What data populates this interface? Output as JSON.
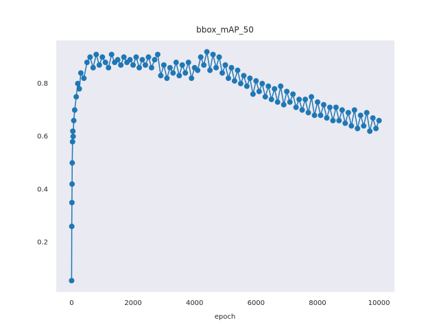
{
  "chart_data": {
    "type": "line",
    "title": "bbox_mAP_50",
    "xlabel": "epoch",
    "grid": false,
    "background": "#eaeaf2",
    "xlim": [
      -500,
      10500
    ],
    "xticks": [
      0,
      2000,
      4000,
      6000,
      8000,
      10000
    ],
    "ylim": [
      0.012,
      0.963
    ],
    "yticks": [
      0.2,
      0.4,
      0.6,
      0.8
    ],
    "x": [
      0,
      5,
      10,
      15,
      20,
      30,
      40,
      50,
      70,
      100,
      150,
      200,
      250,
      300,
      400,
      500,
      600,
      700,
      800,
      900,
      1000,
      1100,
      1200,
      1300,
      1400,
      1500,
      1600,
      1700,
      1800,
      1900,
      2000,
      2100,
      2200,
      2300,
      2400,
      2500,
      2600,
      2700,
      2800,
      2900,
      3000,
      3100,
      3200,
      3300,
      3400,
      3500,
      3600,
      3700,
      3800,
      3900,
      4000,
      4100,
      4200,
      4300,
      4400,
      4500,
      4600,
      4700,
      4800,
      4900,
      5000,
      5100,
      5200,
      5300,
      5400,
      5500,
      5600,
      5700,
      5800,
      5900,
      6000,
      6100,
      6200,
      6300,
      6400,
      6500,
      6600,
      6700,
      6800,
      6900,
      7000,
      7100,
      7200,
      7300,
      7400,
      7500,
      7600,
      7700,
      7800,
      7900,
      8000,
      8100,
      8200,
      8300,
      8400,
      8500,
      8600,
      8700,
      8800,
      8900,
      9000,
      9100,
      9200,
      9300,
      9400,
      9500,
      9600,
      9700,
      9800,
      9900,
      10000
    ],
    "series": [
      {
        "color": "#1f77b4",
        "values": [
          0.055,
          0.26,
          0.35,
          0.42,
          0.5,
          0.58,
          0.62,
          0.6,
          0.66,
          0.7,
          0.75,
          0.8,
          0.78,
          0.84,
          0.82,
          0.88,
          0.9,
          0.86,
          0.91,
          0.87,
          0.9,
          0.88,
          0.86,
          0.91,
          0.88,
          0.89,
          0.87,
          0.9,
          0.88,
          0.89,
          0.87,
          0.9,
          0.86,
          0.89,
          0.87,
          0.9,
          0.86,
          0.89,
          0.91,
          0.83,
          0.87,
          0.82,
          0.86,
          0.84,
          0.88,
          0.83,
          0.87,
          0.84,
          0.88,
          0.82,
          0.86,
          0.85,
          0.9,
          0.87,
          0.92,
          0.85,
          0.91,
          0.86,
          0.9,
          0.84,
          0.87,
          0.82,
          0.86,
          0.81,
          0.85,
          0.8,
          0.83,
          0.79,
          0.82,
          0.76,
          0.81,
          0.77,
          0.8,
          0.75,
          0.79,
          0.74,
          0.78,
          0.73,
          0.79,
          0.72,
          0.77,
          0.73,
          0.76,
          0.71,
          0.74,
          0.7,
          0.74,
          0.69,
          0.75,
          0.68,
          0.73,
          0.68,
          0.72,
          0.67,
          0.71,
          0.66,
          0.71,
          0.66,
          0.7,
          0.65,
          0.69,
          0.64,
          0.7,
          0.63,
          0.68,
          0.64,
          0.69,
          0.62,
          0.67,
          0.63,
          0.66
        ]
      }
    ]
  }
}
